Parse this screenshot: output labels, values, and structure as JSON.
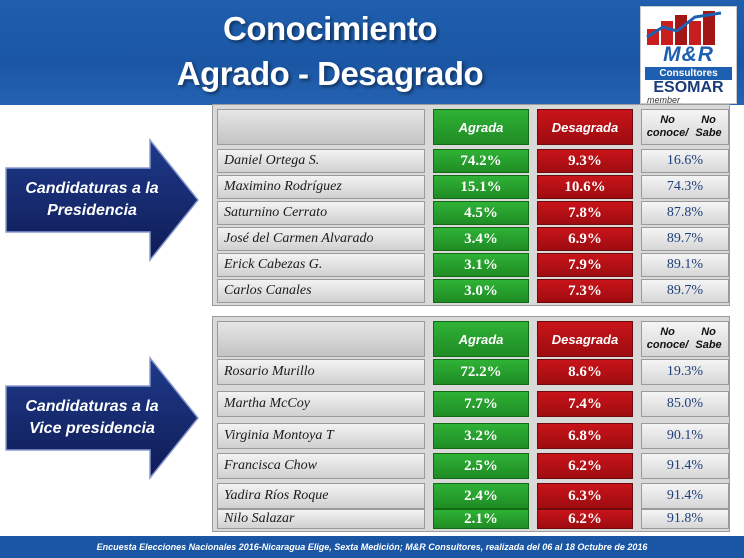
{
  "header": {
    "title_line1": "Conocimiento",
    "title_line2": "Agrado - Desagrado"
  },
  "logo": {
    "brand": "M&R",
    "consultores": "Consultores",
    "esomar": "ESOMAR",
    "member": "member"
  },
  "columns": {
    "agrada": "Agrada",
    "desagrada": "Desagrada",
    "no_conoce_line1": "No conoce/",
    "no_conoce_line2": "No Sabe"
  },
  "presidencia": {
    "label_line1": "Candidaturas a la",
    "label_line2": "Presidencia",
    "rows": [
      {
        "name": "Daniel Ortega S.",
        "agrada": "74.2%",
        "desagrada": "9.3%",
        "no_conoce": "16.6%"
      },
      {
        "name": "Maximino Rodríguez",
        "agrada": "15.1%",
        "desagrada": "10.6%",
        "no_conoce": "74.3%"
      },
      {
        "name": "Saturnino Cerrato",
        "agrada": "4.5%",
        "desagrada": "7.8%",
        "no_conoce": "87.8%"
      },
      {
        "name": "José del Carmen Alvarado",
        "agrada": "3.4%",
        "desagrada": "6.9%",
        "no_conoce": "89.7%"
      },
      {
        "name": "Erick Cabezas G.",
        "agrada": "3.1%",
        "desagrada": "7.9%",
        "no_conoce": "89.1%"
      },
      {
        "name": "Carlos Canales",
        "agrada": "3.0%",
        "desagrada": "7.3%",
        "no_conoce": "89.7%"
      }
    ]
  },
  "vicepresidencia": {
    "label_line1": "Candidaturas a la",
    "label_line2": "Vice presidencia",
    "rows": [
      {
        "name": "Rosario Murillo",
        "agrada": "72.2%",
        "desagrada": "8.6%",
        "no_conoce": "19.3%"
      },
      {
        "name": "Martha McCoy",
        "agrada": "7.7%",
        "desagrada": "7.4%",
        "no_conoce": "85.0%"
      },
      {
        "name": "Virginia Montoya T",
        "agrada": "3.2%",
        "desagrada": "6.8%",
        "no_conoce": "90.1%"
      },
      {
        "name": "Francisca Chow",
        "agrada": "2.5%",
        "desagrada": "6.2%",
        "no_conoce": "91.4%"
      },
      {
        "name": "Yadira Ríos Roque",
        "agrada": "2.4%",
        "desagrada": "6.3%",
        "no_conoce": "91.4%"
      },
      {
        "name": "Nilo Salazar",
        "agrada": "2.1%",
        "desagrada": "6.2%",
        "no_conoce": "91.8%"
      }
    ]
  },
  "footer": "Encuesta Elecciones Nacionales 2016-Nicaragua Elige, Sexta Medición; M&R Consultores, realizada del 06 al 18 Octubre de 2016",
  "colors": {
    "header_blue": "#1a56a3",
    "agrada_green": "#1f8c24",
    "desagrada_red": "#9e0c10",
    "arrow_navy": "#14246a"
  }
}
